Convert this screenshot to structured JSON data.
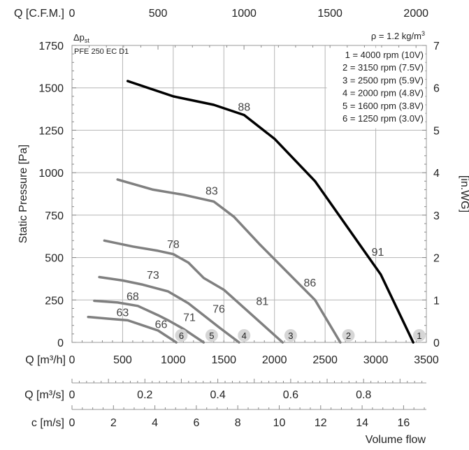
{
  "chart_data": {
    "type": "line",
    "model_label": "PFE 250 EC D1",
    "dp_label": {
      "base": "Δp",
      "sub": "st"
    },
    "density_label": {
      "main": "ρ = 1.2 kg/m",
      "sup": "3"
    },
    "ylabel_left": "Static Pressure [Pa]",
    "ylabel_right": "[in.WG]",
    "xlabel_main": "Q [m³/h]",
    "xlabel_cfm": "Q [C.F.M.]",
    "xlabel_m3s": "Q [m³/s]",
    "xlabel_c": "c [m/s]",
    "footer_label": "Volume flow",
    "xlim": [
      0,
      3500
    ],
    "ylim": [
      0,
      1750
    ],
    "x_ticks": [
      "0",
      "500",
      "1000",
      "1500",
      "2000",
      "2500",
      "3000",
      "3500"
    ],
    "y_ticks": [
      "0",
      "250",
      "500",
      "750",
      "1000",
      "1250",
      "1500",
      "1750"
    ],
    "y_right_ticks": [
      "0",
      "1",
      "2",
      "3",
      "4",
      "5",
      "6",
      "7"
    ],
    "cfm_ticks": [
      "0",
      "500",
      "1000",
      "1500",
      "2000"
    ],
    "m3s_ticks": [
      "0",
      "0.2",
      "0.4",
      "0.6",
      "0.8"
    ],
    "c_ticks": [
      "0",
      "2",
      "4",
      "6",
      "8",
      "10",
      "12",
      "14",
      "16"
    ],
    "legend": [
      "1 = 4000 rpm (10V)",
      "2 = 3150 rpm (7.5V)",
      "3 = 2500 rpm (5.9V)",
      "4 = 2000 rpm (4.8V)",
      "5 = 1600 rpm (3.8V)",
      "6 = 1250 rpm (3.0V)"
    ],
    "legend_position": "top-right",
    "grid": true,
    "series": [
      {
        "name": "1",
        "color": "#000000",
        "x": [
          550,
          1000,
          1400,
          1700,
          2000,
          2400,
          3050,
          3370
        ],
        "y": [
          1540,
          1450,
          1400,
          1340,
          1200,
          950,
          400,
          0
        ],
        "labels": [
          {
            "x": 1700,
            "y": 1365,
            "text": "88"
          },
          {
            "x": 3020,
            "y": 510,
            "text": "91"
          }
        ]
      },
      {
        "name": "2",
        "color": "#808080",
        "x": [
          450,
          800,
          1100,
          1400,
          1600,
          1850,
          2100,
          2400,
          2650
        ],
        "y": [
          960,
          900,
          870,
          830,
          740,
          580,
          430,
          250,
          0
        ],
        "labels": [
          {
            "x": 1380,
            "y": 870,
            "text": "83"
          },
          {
            "x": 2350,
            "y": 330,
            "text": "86"
          }
        ]
      },
      {
        "name": "3",
        "color": "#808080",
        "x": [
          320,
          600,
          850,
          1000,
          1150,
          1300,
          1500,
          1800,
          2080
        ],
        "y": [
          600,
          565,
          540,
          520,
          470,
          380,
          310,
          150,
          0
        ],
        "labels": [
          {
            "x": 1000,
            "y": 555,
            "text": "78"
          },
          {
            "x": 1880,
            "y": 220,
            "text": "81"
          }
        ]
      },
      {
        "name": "4",
        "color": "#808080",
        "x": [
          270,
          500,
          700,
          950,
          1150,
          1300,
          1450,
          1650
        ],
        "y": [
          385,
          365,
          340,
          300,
          230,
          160,
          90,
          0
        ],
        "labels": [
          {
            "x": 800,
            "y": 375,
            "text": "73"
          },
          {
            "x": 1450,
            "y": 175,
            "text": "76"
          }
        ]
      },
      {
        "name": "5",
        "color": "#808080",
        "x": [
          220,
          450,
          650,
          850,
          950,
          1100,
          1300
        ],
        "y": [
          245,
          235,
          215,
          160,
          130,
          80,
          0
        ],
        "labels": [
          {
            "x": 600,
            "y": 250,
            "text": "68"
          },
          {
            "x": 1160,
            "y": 125,
            "text": "71"
          }
        ]
      },
      {
        "name": "6",
        "color": "#808080",
        "x": [
          160,
          350,
          550,
          700,
          850,
          1030
        ],
        "y": [
          150,
          140,
          130,
          100,
          70,
          0
        ],
        "labels": [
          {
            "x": 500,
            "y": 155,
            "text": "63"
          },
          {
            "x": 880,
            "y": 85,
            "text": "66"
          }
        ]
      }
    ],
    "curve_markers": [
      {
        "label": "1",
        "x": 3430
      },
      {
        "label": "2",
        "x": 2730
      },
      {
        "label": "3",
        "x": 2160
      },
      {
        "label": "4",
        "x": 1700
      },
      {
        "label": "5",
        "x": 1380
      },
      {
        "label": "6",
        "x": 1080
      }
    ]
  }
}
